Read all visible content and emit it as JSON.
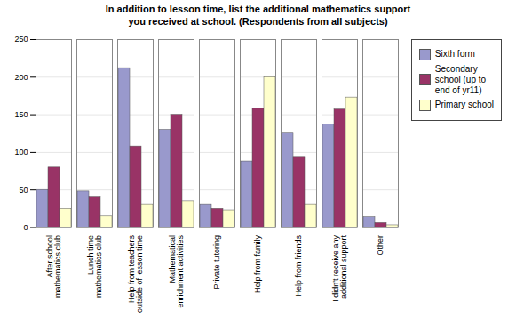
{
  "chart_data": {
    "type": "bar",
    "title": "In addition to lesson time, list the additional mathematics support\nyou received at school. (Respondents from all subjects)",
    "categories": [
      "After school\nmathematics club",
      "Lunch time\nmathematics club",
      "Help from teachers\noutside of lesson time",
      "Mathematical\nenrichment activities",
      "Private tutoring",
      "Help from family",
      "Help from friends",
      "I didn't receive any\nadditional support",
      "Other"
    ],
    "series": [
      {
        "name": "Sixth form",
        "color": "#9999cc",
        "values": [
          50,
          48,
          212,
          130,
          30,
          88,
          125,
          137,
          14
        ]
      },
      {
        "name": "Secondary\nschool (up to\nend of yr11)",
        "color": "#993366",
        "values": [
          80,
          40,
          108,
          150,
          25,
          158,
          93,
          157,
          6
        ]
      },
      {
        "name": "Primary school",
        "color": "#ffffcc",
        "values": [
          25,
          15,
          30,
          35,
          23,
          200,
          30,
          173,
          3
        ]
      }
    ],
    "ylim": [
      0,
      250
    ],
    "yticks": [
      0,
      50,
      100,
      150,
      200,
      250
    ],
    "grid": true,
    "legend": "right"
  }
}
